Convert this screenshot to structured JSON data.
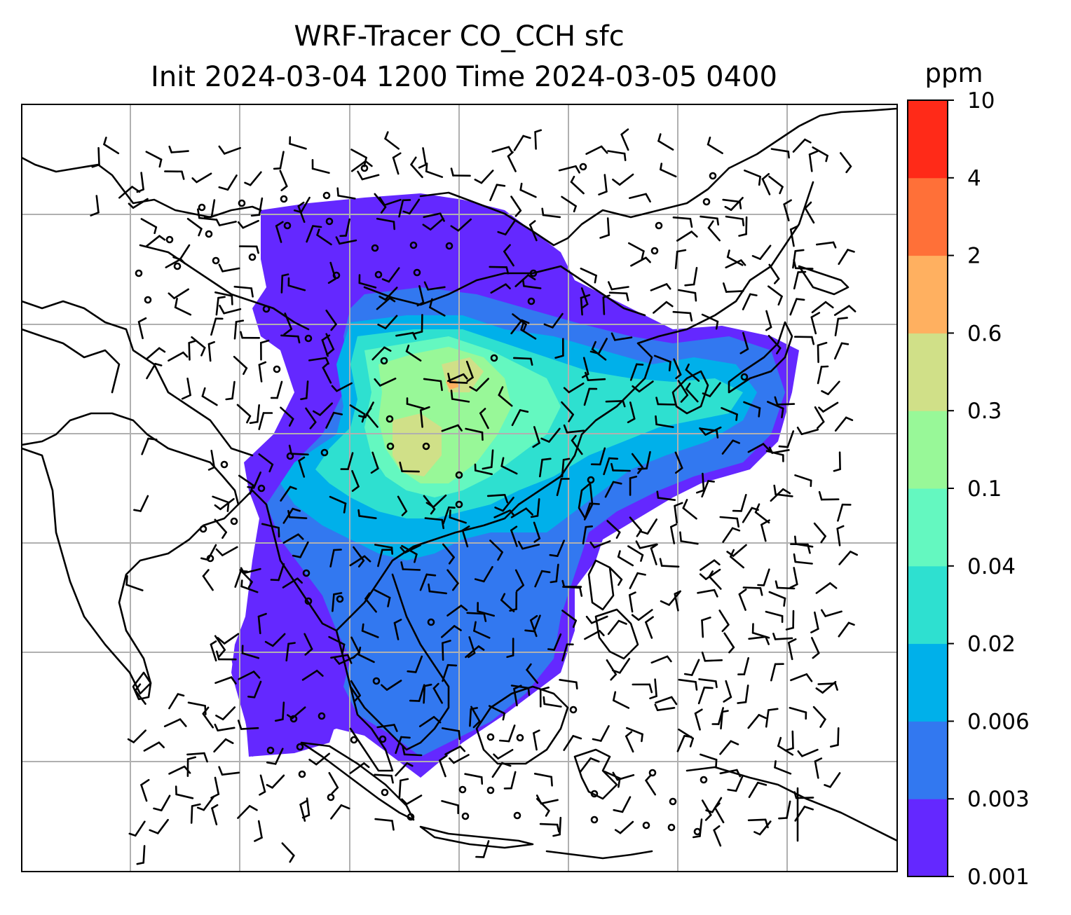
{
  "figure": {
    "title_line1": "WRF-Tracer CO_CCH sfc",
    "title_line2": "Init 2024-03-04 1200 Time 2024-03-05 0400"
  },
  "colorbar": {
    "unit": "ppm",
    "levels": [
      "0.001",
      "0.003",
      "0.006",
      "0.02",
      "0.04",
      "0.1",
      "0.3",
      "0.6",
      "2",
      "4",
      "10"
    ],
    "colors": [
      "#6428ff",
      "#3278f0",
      "#00b0ea",
      "#2ee0d0",
      "#64f8c0",
      "#98f898",
      "#d0e088",
      "#ffb060",
      "#ff7038",
      "#ff2a18"
    ]
  },
  "map": {
    "field": "CO_CCH surface tracer concentration",
    "overlay": "wind barbs",
    "colors": {
      "coastline": "#000000",
      "gridline": "#b0b0b0",
      "frame": "#000000"
    }
  }
}
